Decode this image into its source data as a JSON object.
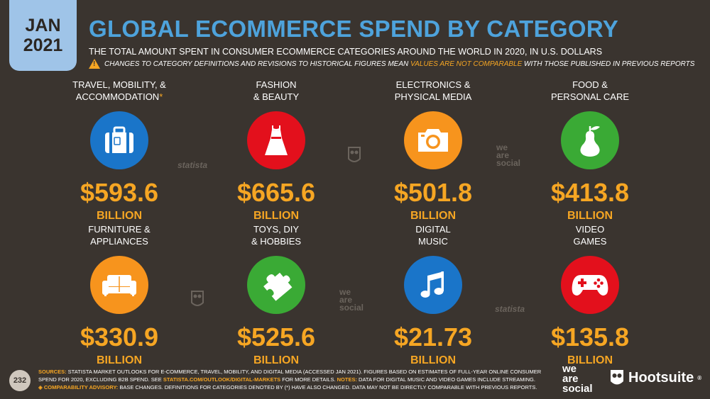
{
  "date_tab": {
    "month": "JAN",
    "year": "2021"
  },
  "title": "GLOBAL ECOMMERCE SPEND BY CATEGORY",
  "subtitle": "THE TOTAL AMOUNT SPENT IN CONSUMER ECOMMERCE CATEGORIES AROUND THE WORLD IN 2020, IN U.S. DOLLARS",
  "warning": {
    "before": "CHANGES TO CATEGORY DEFINITIONS AND REVISIONS TO HISTORICAL FIGURES MEAN ",
    "highlight": "VALUES ARE NOT COMPARABLE",
    "after": " WITH THOSE PUBLISHED IN PREVIOUS REPORTS"
  },
  "categories": [
    {
      "line1": "TRAVEL, MOBILITY, &",
      "line2": "ACCOMMODATION",
      "asterisk": "*",
      "icon": "suitcase-icon",
      "color": "#1a75c9",
      "value": "$593.6",
      "unit": "BILLION"
    },
    {
      "line1": "FASHION",
      "line2": "& BEAUTY",
      "asterisk": "",
      "icon": "dress-icon",
      "color": "#e3101c",
      "value": "$665.6",
      "unit": "BILLION"
    },
    {
      "line1": "ELECTRONICS &",
      "line2": "PHYSICAL MEDIA",
      "asterisk": "",
      "icon": "camera-icon",
      "color": "#f7941d",
      "value": "$501.8",
      "unit": "BILLION"
    },
    {
      "line1": "FOOD &",
      "line2": "PERSONAL CARE",
      "asterisk": "",
      "icon": "pear-icon",
      "color": "#3aaa35",
      "value": "$413.8",
      "unit": "BILLION"
    },
    {
      "line1": "FURNITURE &",
      "line2": "APPLIANCES",
      "asterisk": "",
      "icon": "sofa-icon",
      "color": "#f7941d",
      "value": "$330.9",
      "unit": "BILLION"
    },
    {
      "line1": "TOYS, DIY",
      "line2": "& HOBBIES",
      "asterisk": "",
      "icon": "puzzle-icon",
      "color": "#3aaa35",
      "value": "$525.6",
      "unit": "BILLION"
    },
    {
      "line1": "DIGITAL",
      "line2": "MUSIC",
      "asterisk": "",
      "icon": "music-note-icon",
      "color": "#1a75c9",
      "value": "$21.73",
      "unit": "BILLION"
    },
    {
      "line1": "VIDEO",
      "line2": "GAMES",
      "asterisk": "",
      "icon": "gamepad-icon",
      "color": "#e3101c",
      "value": "$135.8",
      "unit": "BILLION"
    }
  ],
  "watermarks": {
    "statista": "statista",
    "we": "we",
    "are": "are",
    "social": "social"
  },
  "footer": {
    "page_number": "232",
    "sources_label": "SOURCES:",
    "sources_text": " STATISTA MARKET OUTLOOKS FOR E-COMMERCE, TRAVEL, MOBILITY, AND DIGITAL MEDIA (ACCESSED JAN 2021). FIGURES BASED ON ESTIMATES OF FULL-YEAR ONLINE CONSUMER SPEND FOR 2020, EXCLUDING B2B SPEND. SEE ",
    "sources_link": "STATISTA.COM/OUTLOOK/DIGITAL-MARKETS",
    "sources_text2": " FOR MORE DETAILS. ",
    "notes_label": "NOTES:",
    "notes_text": " DATA FOR DIGITAL MUSIC AND VIDEO GAMES INCLUDE STREAMING.",
    "advisory_label": "◈ COMPARABILITY ADVISORY:",
    "advisory_text": " BASE CHANGES. DEFINITIONS FOR CATEGORIES DENOTED BY (*) HAVE ALSO CHANGED. DATA MAY NOT BE DIRECTLY COMPARABLE WITH PREVIOUS REPORTS.",
    "brand_we": "we",
    "brand_are": "are",
    "brand_social": "social",
    "brand_hootsuite": "Hootsuite",
    "brand_trademark": "®"
  },
  "colors": {
    "accent": "#f6a623",
    "title_blue": "#4ea3dc",
    "background": "#3a342f"
  }
}
